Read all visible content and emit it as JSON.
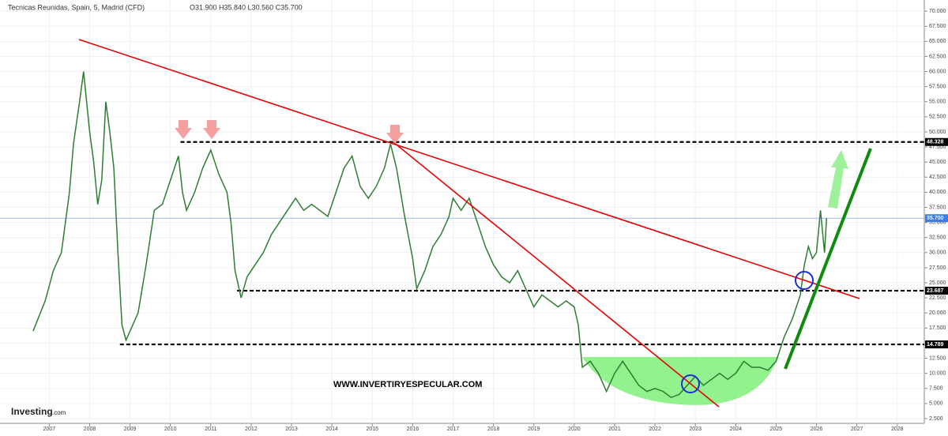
{
  "chart_data": {
    "type": "line",
    "title": "Tecnicas Reunidas, Spain, 5, Madrid (CFD)",
    "ohlc_label": "O31.900 H35.840 L30.560 C35.700",
    "watermark": "WWW.INVERTIRYESPECULAR.COM",
    "logo": "Investing",
    "logo_suffix": ".com",
    "color": "#2e7d32",
    "x": [
      2006.6,
      2006.9,
      2007.1,
      2007.3,
      2007.5,
      2007.6,
      2007.75,
      2007.85,
      2008.0,
      2008.1,
      2008.2,
      2008.3,
      2008.4,
      2008.5,
      2008.6,
      2008.7,
      2008.8,
      2008.9,
      2009.0,
      2009.2,
      2009.4,
      2009.6,
      2009.8,
      2010.0,
      2010.2,
      2010.3,
      2010.4,
      2010.6,
      2010.8,
      2011.0,
      2011.2,
      2011.4,
      2011.5,
      2011.6,
      2011.75,
      2011.9,
      2012.1,
      2012.3,
      2012.5,
      2012.7,
      2012.9,
      2013.1,
      2013.3,
      2013.5,
      2013.7,
      2013.9,
      2014.1,
      2014.3,
      2014.5,
      2014.7,
      2014.9,
      2015.1,
      2015.3,
      2015.45,
      2015.6,
      2015.8,
      2016.0,
      2016.1,
      2016.3,
      2016.5,
      2016.7,
      2016.9,
      2017.0,
      2017.2,
      2017.4,
      2017.6,
      2017.8,
      2018.0,
      2018.2,
      2018.4,
      2018.6,
      2018.8,
      2019.0,
      2019.2,
      2019.4,
      2019.6,
      2019.8,
      2020.0,
      2020.1,
      2020.2,
      2020.4,
      2020.6,
      2020.8,
      2021.0,
      2021.2,
      2021.4,
      2021.6,
      2021.8,
      2022.0,
      2022.2,
      2022.4,
      2022.6,
      2022.8,
      2023.0,
      2023.2,
      2023.4,
      2023.6,
      2023.8,
      2024.0,
      2024.2,
      2024.4,
      2024.6,
      2024.8,
      2025.0,
      2025.2,
      2025.4,
      2025.6,
      2025.7,
      2025.8,
      2025.9,
      2026.0,
      2026.1,
      2026.2,
      2026.25
    ],
    "values": [
      17,
      22,
      27,
      30,
      40,
      48,
      55,
      60,
      50,
      45,
      38,
      42,
      55,
      50,
      44,
      30,
      18,
      15.5,
      17,
      20,
      28,
      37,
      38,
      42,
      46,
      40,
      37,
      40,
      44,
      47,
      43,
      40,
      35,
      27,
      22.5,
      26,
      28,
      30,
      33,
      35,
      37,
      39,
      37,
      38,
      37,
      36,
      40,
      44,
      46,
      41,
      39,
      41,
      44,
      48,
      44,
      36,
      29,
      24,
      27,
      31,
      33,
      36,
      39,
      37,
      39,
      35,
      31,
      28,
      26,
      25,
      27,
      24,
      21,
      23,
      22,
      21,
      22,
      21,
      18,
      11,
      12,
      10,
      7,
      10,
      12,
      10,
      8,
      7,
      7.5,
      7,
      6,
      6.5,
      8,
      9.5,
      8,
      9,
      10,
      9,
      10,
      12,
      11,
      11,
      10.5,
      12,
      16,
      19,
      23,
      28,
      31,
      29,
      30,
      37,
      30,
      35.7
    ],
    "xlim": [
      2005.78,
      2028.67
    ],
    "ylim": [
      1.71,
      71.85
    ],
    "xticks": [
      2007,
      2008,
      2009,
      2010,
      2011,
      2012,
      2013,
      2014,
      2015,
      2016,
      2017,
      2018,
      2019,
      2020,
      2021,
      2022,
      2023,
      2024,
      2025,
      2026,
      2027,
      2028
    ],
    "yticks": [
      {
        "value": 2.5,
        "label": "2.500"
      },
      {
        "value": 5,
        "label": "5.000"
      },
      {
        "value": 7.5,
        "label": "7.500"
      },
      {
        "value": 10,
        "label": "10.000"
      },
      {
        "value": 12.5,
        "label": "12.500"
      },
      {
        "value": 15,
        "label": "15.000"
      },
      {
        "value": 17.5,
        "label": "17.500"
      },
      {
        "value": 20,
        "label": "20.000"
      },
      {
        "value": 22.5,
        "label": "22.500"
      },
      {
        "value": 25,
        "label": "25.000"
      },
      {
        "value": 27.5,
        "label": "27.500"
      },
      {
        "value": 30,
        "label": "30.000"
      },
      {
        "value": 32.5,
        "label": "32.500"
      },
      {
        "value": 35,
        "label": "35.000"
      },
      {
        "value": 37.5,
        "label": "37.500"
      },
      {
        "value": 40,
        "label": "40.000"
      },
      {
        "value": 42.5,
        "label": "42.500"
      },
      {
        "value": 45,
        "label": "45.000"
      },
      {
        "value": 47.5,
        "label": "47.500"
      },
      {
        "value": 50,
        "label": "50.000"
      },
      {
        "value": 52.5,
        "label": "52.500"
      },
      {
        "value": 55,
        "label": "55.000"
      },
      {
        "value": 57.5,
        "label": "57.500"
      },
      {
        "value": 60,
        "label": "60.000"
      },
      {
        "value": 62.5,
        "label": "62.500"
      },
      {
        "value": 65,
        "label": "65.000"
      },
      {
        "value": 67.5,
        "label": "67.500"
      },
      {
        "value": 70,
        "label": "70.000"
      }
    ],
    "levels": [
      {
        "value": 48.328,
        "label": "48.328",
        "from": 2010.25
      },
      {
        "value": 23.687,
        "label": "23.687",
        "from": 2011.65
      },
      {
        "value": 14.789,
        "label": "14.789",
        "from": 2008.75
      }
    ],
    "last_price": {
      "value": 35.7,
      "label": "35.700"
    }
  }
}
